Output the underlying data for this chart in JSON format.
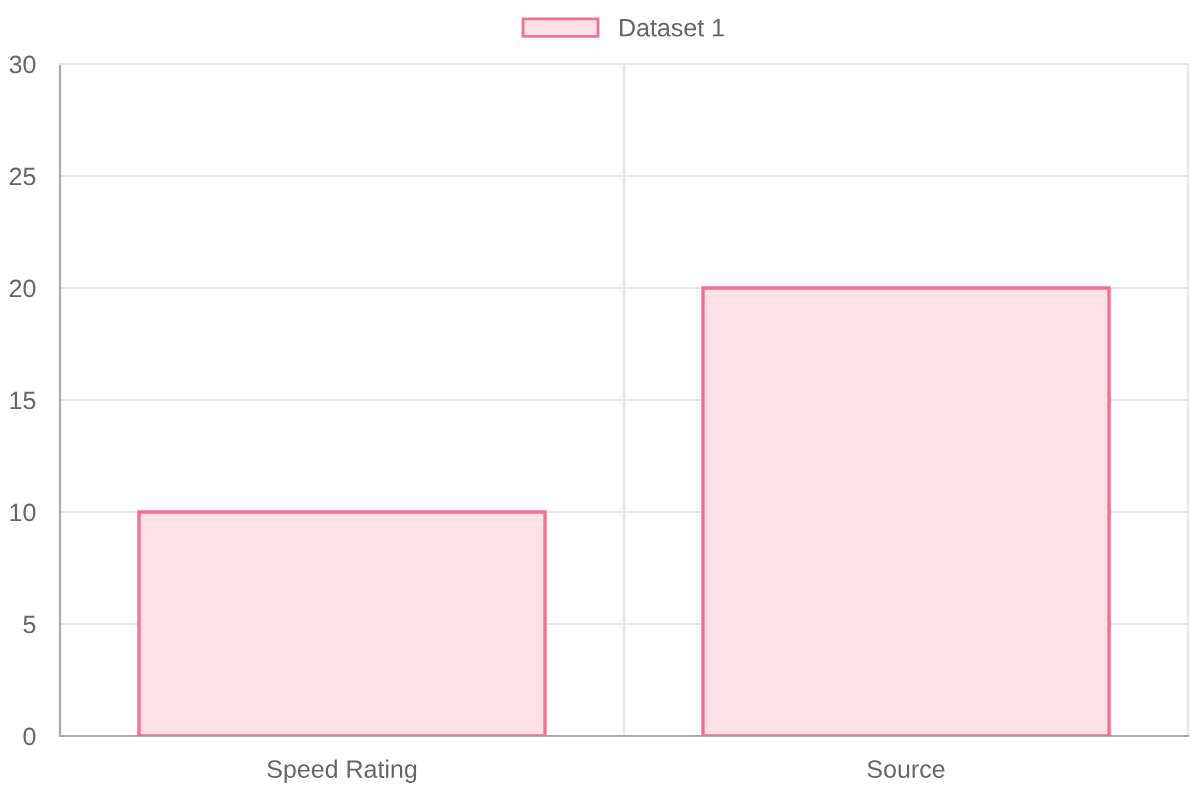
{
  "chart_data": {
    "type": "bar",
    "categories": [
      "Speed Rating",
      "Source"
    ],
    "series": [
      {
        "name": "Dataset 1",
        "color": "#ffe0e6",
        "values": [
          10,
          20
        ]
      }
    ],
    "ylim": [
      0,
      30
    ],
    "yticks": [
      0,
      5,
      10,
      15,
      20,
      25,
      30
    ],
    "grid": true,
    "legend": "top"
  }
}
